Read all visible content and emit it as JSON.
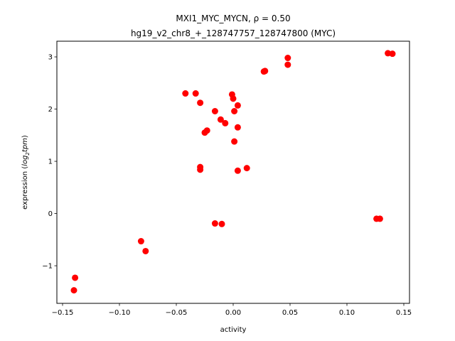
{
  "chart_data": {
    "type": "scatter",
    "title_line1": "MXI1_MYC_MYCN, ρ = 0.50",
    "title_line2": "hg19_v2_chr8_+_128747757_128747800 (MYC)",
    "xlabel": "activity",
    "ylabel_prefix": "expression (",
    "ylabel_math": "log",
    "ylabel_sub": "2",
    "ylabel_math2": "tpm",
    "ylabel_suffix": ")",
    "xlim": [
      -0.155,
      0.155
    ],
    "ylim": [
      -1.72,
      3.3
    ],
    "xticks": [
      {
        "value": -0.15,
        "label": "−0.15"
      },
      {
        "value": -0.1,
        "label": "−0.10"
      },
      {
        "value": -0.05,
        "label": "−0.05"
      },
      {
        "value": 0.0,
        "label": "0.00"
      },
      {
        "value": 0.05,
        "label": "0.05"
      },
      {
        "value": 0.1,
        "label": "0.10"
      },
      {
        "value": 0.15,
        "label": "0.15"
      }
    ],
    "yticks": [
      {
        "value": -1,
        "label": "−1"
      },
      {
        "value": 0,
        "label": "0"
      },
      {
        "value": 1,
        "label": "1"
      },
      {
        "value": 2,
        "label": "2"
      },
      {
        "value": 3,
        "label": "3"
      }
    ],
    "grid": false,
    "marker_color": "#ff0000",
    "points": [
      {
        "x": -0.139,
        "y": -1.23
      },
      {
        "x": -0.14,
        "y": -1.47
      },
      {
        "x": -0.081,
        "y": -0.53
      },
      {
        "x": -0.077,
        "y": -0.72
      },
      {
        "x": -0.042,
        "y": 2.3
      },
      {
        "x": -0.033,
        "y": 2.3
      },
      {
        "x": -0.029,
        "y": 2.12
      },
      {
        "x": -0.029,
        "y": 0.89
      },
      {
        "x": -0.029,
        "y": 0.84
      },
      {
        "x": -0.025,
        "y": 1.55
      },
      {
        "x": -0.023,
        "y": 1.59
      },
      {
        "x": -0.016,
        "y": 1.96
      },
      {
        "x": -0.016,
        "y": -0.19
      },
      {
        "x": -0.011,
        "y": 1.8
      },
      {
        "x": -0.01,
        "y": -0.2
      },
      {
        "x": -0.007,
        "y": 1.73
      },
      {
        "x": -0.001,
        "y": 2.28
      },
      {
        "x": 0.0,
        "y": 2.2
      },
      {
        "x": 0.001,
        "y": 1.96
      },
      {
        "x": 0.001,
        "y": 1.38
      },
      {
        "x": 0.004,
        "y": 2.07
      },
      {
        "x": 0.004,
        "y": 1.65
      },
      {
        "x": 0.004,
        "y": 0.82
      },
      {
        "x": 0.012,
        "y": 0.87
      },
      {
        "x": 0.027,
        "y": 2.72
      },
      {
        "x": 0.028,
        "y": 2.73
      },
      {
        "x": 0.048,
        "y": 2.98
      },
      {
        "x": 0.048,
        "y": 2.85
      },
      {
        "x": 0.126,
        "y": -0.1
      },
      {
        "x": 0.129,
        "y": -0.1
      },
      {
        "x": 0.136,
        "y": 3.07
      },
      {
        "x": 0.14,
        "y": 3.06
      }
    ]
  }
}
